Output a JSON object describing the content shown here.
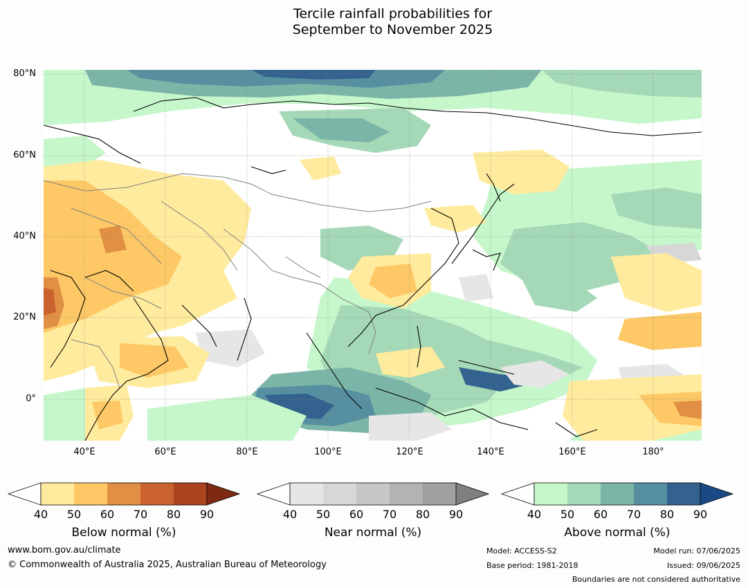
{
  "title_line1": "Tercile rainfall probabilities for",
  "title_line2": "September to November 2025",
  "lat_labels": [
    "80°N",
    "60°N",
    "40°N",
    "20°N",
    "0°"
  ],
  "lon_labels": [
    "40°E",
    "60°E",
    "80°E",
    "100°E",
    "120°E",
    "140°E",
    "160°E",
    "180°"
  ],
  "colorbars": [
    {
      "caption": "Below normal (%)",
      "ticks": [
        "40",
        "50",
        "60",
        "70",
        "80",
        "90"
      ],
      "colors": [
        "#ffeb9d",
        "#fdc865",
        "#e08f44",
        "#c9622f",
        "#a9441e",
        "#7e2a12"
      ]
    },
    {
      "caption": "Near normal (%)",
      "ticks": [
        "40",
        "50",
        "60",
        "70",
        "80",
        "90"
      ],
      "colors": [
        "#e6e6e6",
        "#d7d7d7",
        "#c6c6c6",
        "#b3b3b3",
        "#a0a0a0",
        "#7f7f7f"
      ]
    },
    {
      "caption": "Above normal (%)",
      "ticks": [
        "40",
        "50",
        "60",
        "70",
        "80",
        "90"
      ],
      "colors": [
        "#c6f7cb",
        "#a4d8b7",
        "#7bb5a8",
        "#5690a0",
        "#33628f",
        "#1a4a85"
      ]
    }
  ],
  "footer": {
    "website": "www.bom.gov.au/climate",
    "copyright": "© Commonwealth of Australia 2025, Australian Bureau of Meteorology",
    "model": "Model: ACCESS-S2",
    "base_period": "Base period: 1981-2018",
    "model_run": "Model run: 07/06/2025",
    "issued": "Issued: 09/06/2025",
    "disclaimer": "Boundaries are not considered authoritative"
  }
}
